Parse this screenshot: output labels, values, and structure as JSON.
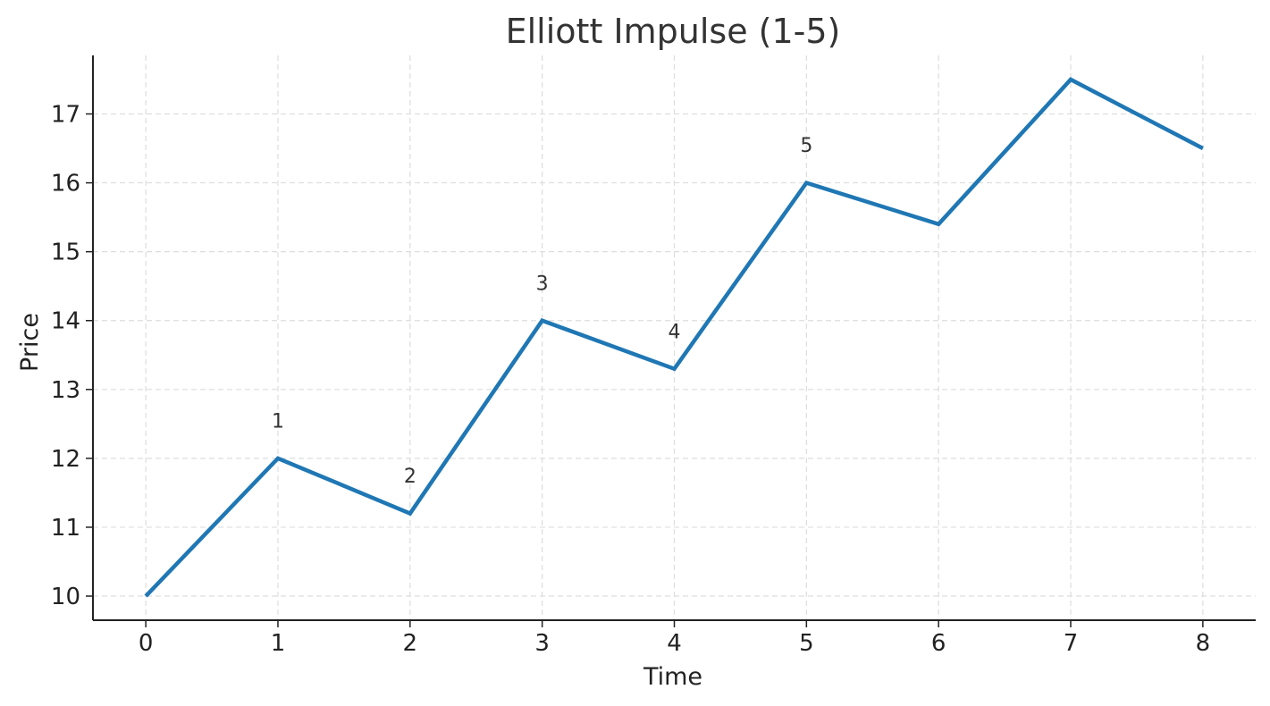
{
  "chart_data": {
    "type": "line",
    "title": "Elliott Impulse (1-5)",
    "xlabel": "Time",
    "ylabel": "Price",
    "x": [
      0,
      1,
      2,
      3,
      4,
      5,
      6,
      7,
      8
    ],
    "series": [
      {
        "values": [
          10,
          12,
          11.2,
          14,
          13.3,
          16,
          15.4,
          17.5,
          16.5
        ]
      }
    ],
    "xticks": [
      "0",
      "1",
      "2",
      "3",
      "4",
      "5",
      "6",
      "7",
      "8"
    ],
    "yticks": [
      "10",
      "11",
      "12",
      "13",
      "14",
      "15",
      "16",
      "17"
    ],
    "xlim": [
      -0.4,
      8.4
    ],
    "ylim": [
      9.65,
      17.85
    ],
    "grid": true,
    "grid_style": "dashed",
    "annotations": [
      {
        "text": "1",
        "x": 1,
        "y": 12.55
      },
      {
        "text": "2",
        "x": 2,
        "y": 11.75
      },
      {
        "text": "3",
        "x": 3,
        "y": 14.55
      },
      {
        "text": "4",
        "x": 4,
        "y": 13.85
      },
      {
        "text": "5",
        "x": 5,
        "y": 16.55
      }
    ],
    "colors": {
      "line": "#1f77b4",
      "grid": "#dddddd",
      "axis": "#222222",
      "text": "#222222"
    }
  }
}
